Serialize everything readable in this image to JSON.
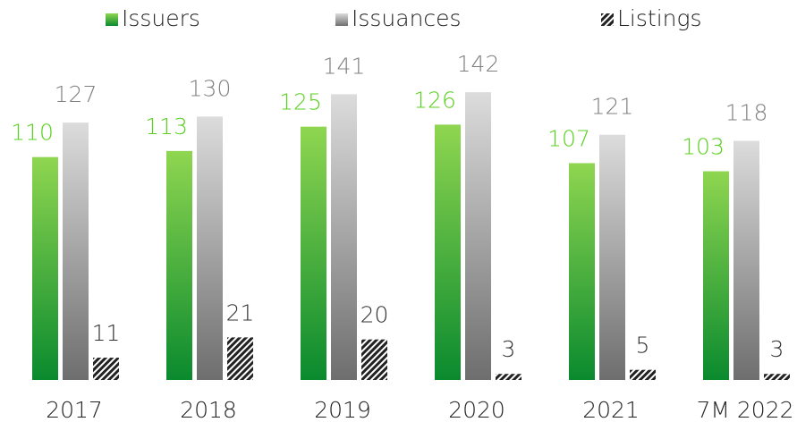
{
  "chart_data": {
    "type": "bar",
    "categories": [
      "2017",
      "2018",
      "2019",
      "2020",
      "2021",
      "7M 2022"
    ],
    "series": [
      {
        "name": "Issuers",
        "gradient": [
          "#8fd650",
          "#0a8a2e"
        ],
        "label_color": "#57d11c",
        "values": [
          110,
          113,
          125,
          126,
          107,
          103
        ]
      },
      {
        "name": "Issuances",
        "gradient": [
          "#dcdcdc",
          "#6e6e6e"
        ],
        "label_color": "#7f7f7f",
        "values": [
          127,
          130,
          141,
          142,
          121,
          118
        ]
      },
      {
        "name": "Listings",
        "pattern": "hatch",
        "color": "#222222",
        "label_color": "#333333",
        "values": [
          11,
          21,
          20,
          3,
          5,
          3
        ]
      }
    ],
    "ylim": [
      0,
      150
    ],
    "legend": "top"
  }
}
